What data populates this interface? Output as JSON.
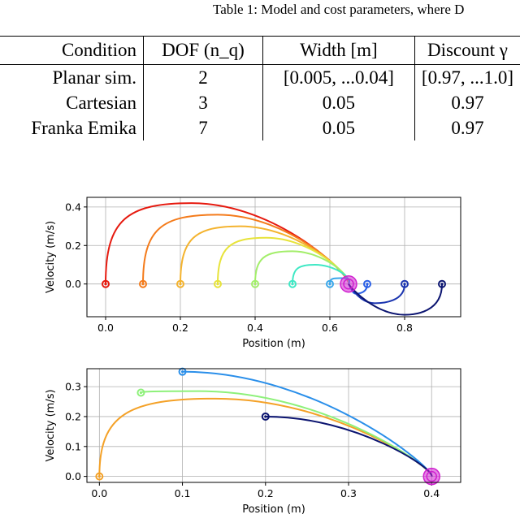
{
  "table": {
    "caption": "Table 1: Model and cost parameters, where D",
    "headers": [
      "Condition",
      "DOF (n_q)",
      "Width [m]",
      "Discount γ"
    ],
    "rows": [
      [
        "Planar sim.",
        "2",
        "[0.005, ...0.04]",
        "[0.97, ...1.0]"
      ],
      [
        "Cartesian",
        "3",
        "0.05",
        "0.97"
      ],
      [
        "Franka Emika",
        "7",
        "0.05",
        "0.97"
      ]
    ]
  },
  "chart_data": [
    {
      "type": "line",
      "xlabel": "Position (m)",
      "ylabel": "Velocity (m/s)",
      "xlim": [
        -0.05,
        0.95
      ],
      "ylim": [
        -0.17,
        0.45
      ],
      "xticks": [
        "0.0",
        "0.2",
        "0.4",
        "0.6",
        "0.8"
      ],
      "yticks": [
        "0.0",
        "0.2",
        "0.4"
      ],
      "grid": true,
      "target": {
        "x": 0.65,
        "y": 0.0,
        "color": "#d020d0"
      },
      "series": [
        {
          "color": "#e61a0f",
          "start": [
            0.0,
            0.0
          ],
          "peak": [
            0.23,
            0.42
          ]
        },
        {
          "color": "#f47b1b",
          "start": [
            0.1,
            0.0
          ],
          "peak": [
            0.3,
            0.36
          ]
        },
        {
          "color": "#f4b32e",
          "start": [
            0.2,
            0.0
          ],
          "peak": [
            0.36,
            0.3
          ]
        },
        {
          "color": "#e7e33a",
          "start": [
            0.3,
            0.0
          ],
          "peak": [
            0.43,
            0.24
          ]
        },
        {
          "color": "#a3ee6a",
          "start": [
            0.4,
            0.0
          ],
          "peak": [
            0.5,
            0.17
          ]
        },
        {
          "color": "#3ee8c4",
          "start": [
            0.5,
            0.0
          ],
          "peak": [
            0.56,
            0.1
          ]
        },
        {
          "color": "#3aa7ea",
          "start": [
            0.6,
            0.0
          ],
          "peak": [
            0.62,
            0.03
          ]
        },
        {
          "color": "#2a60e6",
          "start": [
            0.7,
            0.0
          ],
          "trough": [
            0.67,
            -0.05
          ]
        },
        {
          "color": "#1b35b0",
          "start": [
            0.8,
            0.0
          ],
          "trough": [
            0.72,
            -0.1
          ]
        },
        {
          "color": "#0b1470",
          "start": [
            0.9,
            0.0
          ],
          "trough": [
            0.8,
            -0.16
          ]
        }
      ]
    },
    {
      "type": "line",
      "xlabel": "Position (m)",
      "ylabel": "Velocity (m/s)",
      "xlim": [
        -0.015,
        0.435
      ],
      "ylim": [
        -0.02,
        0.36
      ],
      "xticks": [
        "0.0",
        "0.1",
        "0.2",
        "0.3",
        "0.4"
      ],
      "yticks": [
        "0.0",
        "0.1",
        "0.2",
        "0.3"
      ],
      "grid": true,
      "target": {
        "x": 0.4,
        "y": 0.0,
        "color": "#d020d0"
      },
      "series": [
        {
          "color": "#f4a127",
          "start": [
            0.0,
            0.0
          ],
          "peak": [
            0.14,
            0.26
          ]
        },
        {
          "color": "#8ef17a",
          "start": [
            0.05,
            0.28
          ],
          "peak": [
            0.12,
            0.285
          ]
        },
        {
          "color": "#2a8fea",
          "start": [
            0.1,
            0.35
          ],
          "peak": [
            0.1,
            0.35
          ]
        },
        {
          "color": "#0b1470",
          "start": [
            0.2,
            0.2
          ],
          "peak": [
            0.2,
            0.2
          ]
        }
      ]
    }
  ]
}
